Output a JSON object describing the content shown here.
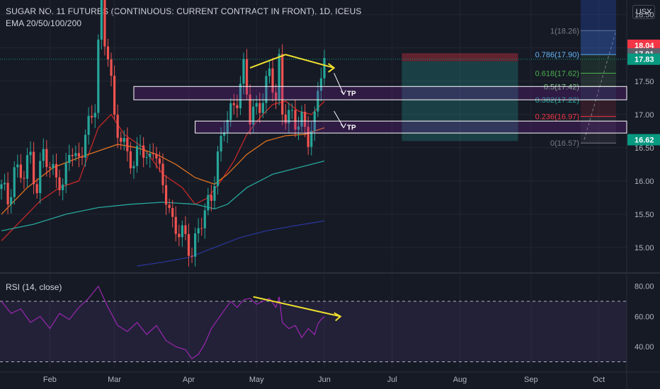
{
  "header": {
    "title": "SUGAR NO. 11 FUTURES (CONTINUOUS: CURRENT CONTRACT IN FRONT), 1D, ICEUS",
    "indicator": "EMA 20/50/100/200",
    "unit": "USX"
  },
  "rsi_label": "RSI (14, close)",
  "colors": {
    "background": "#161a25",
    "up": "#26a69a",
    "down": "#ef5350",
    "ema20": "#c62828",
    "ema50": "#e1731f",
    "ema100": "#26a69a",
    "ema200": "#283593",
    "rsi": "#9c27b0",
    "arrow": "#f0e130",
    "price_current": "#089981",
    "stop": "#f23645"
  },
  "chart_data": [
    {
      "type": "candlestick",
      "title": "SUGAR NO. 11 FUTURES (CONTINUOUS: CURRENT CONTRACT IN FRONT), 1D, ICEUS",
      "ylim": [
        14.68,
        18.72
      ],
      "yticks": [
        15.0,
        15.5,
        16.0,
        16.5,
        17.0,
        17.5,
        18.0,
        18.5
      ],
      "xlim": [
        0,
        200
      ],
      "xticks": [
        {
          "label": "Feb",
          "x": 15
        },
        {
          "label": "Mar",
          "x": 35
        },
        {
          "label": "Apr",
          "x": 58
        },
        {
          "label": "May",
          "x": 79
        },
        {
          "label": "Jun",
          "x": 100
        },
        {
          "label": "Jul",
          "x": 121
        },
        {
          "label": "Aug",
          "x": 142
        },
        {
          "label": "Sep",
          "x": 164
        },
        {
          "label": "Oct",
          "x": 185
        }
      ],
      "ohlc_anchors": [
        [
          0,
          15.88
        ],
        [
          2,
          15.7
        ],
        [
          4,
          16.2
        ],
        [
          7,
          16.05
        ],
        [
          9,
          16.4
        ],
        [
          11,
          15.9
        ],
        [
          13,
          16.45
        ],
        [
          15,
          16.1
        ],
        [
          17,
          16.2
        ],
        [
          19,
          15.85
        ],
        [
          21,
          16.45
        ],
        [
          23,
          16.3
        ],
        [
          25,
          16.55
        ],
        [
          27,
          16.8
        ],
        [
          29,
          17.1
        ],
        [
          30,
          18.05
        ],
        [
          31,
          18.7
        ],
        [
          32,
          18.2
        ],
        [
          33,
          17.9
        ],
        [
          35,
          16.9
        ],
        [
          37,
          16.6
        ],
        [
          39,
          16.55
        ],
        [
          41,
          16.1
        ],
        [
          43,
          16.6
        ],
        [
          45,
          16.3
        ],
        [
          47,
          16.55
        ],
        [
          49,
          16.05
        ],
        [
          51,
          15.8
        ],
        [
          53,
          15.4
        ],
        [
          55,
          15.2
        ],
        [
          57,
          15.1
        ],
        [
          59,
          14.96
        ],
        [
          61,
          15.3
        ],
        [
          63,
          15.45
        ],
        [
          65,
          15.8
        ],
        [
          67,
          16.4
        ],
        [
          69,
          16.8
        ],
        [
          71,
          17.0
        ],
        [
          73,
          17.3
        ],
        [
          75,
          17.7
        ],
        [
          77,
          16.9
        ],
        [
          79,
          17.1
        ],
        [
          81,
          17.3
        ],
        [
          83,
          17.6
        ],
        [
          85,
          17.2
        ],
        [
          86,
          17.8
        ],
        [
          87,
          17.1
        ],
        [
          89,
          17.0
        ],
        [
          91,
          16.8
        ],
        [
          93,
          16.95
        ],
        [
          95,
          16.7
        ],
        [
          97,
          16.85
        ],
        [
          98,
          17.3
        ],
        [
          99,
          17.65
        ],
        [
          100,
          17.83
        ]
      ],
      "ema": [
        {
          "name": "EMA 20",
          "points": [
            [
              0,
              15.1
            ],
            [
              6,
              15.4
            ],
            [
              12,
              15.7
            ],
            [
              18,
              15.9
            ],
            [
              24,
              16.0
            ],
            [
              30,
              16.8
            ],
            [
              34,
              17.0
            ],
            [
              38,
              16.7
            ],
            [
              44,
              16.5
            ],
            [
              50,
              16.1
            ],
            [
              56,
              15.9
            ],
            [
              60,
              15.65
            ],
            [
              64,
              15.75
            ],
            [
              68,
              16.0
            ],
            [
              72,
              16.3
            ],
            [
              76,
              16.7
            ],
            [
              80,
              16.95
            ],
            [
              84,
              17.15
            ],
            [
              88,
              17.2
            ],
            [
              92,
              17.05
            ],
            [
              96,
              17.0
            ],
            [
              100,
              17.2
            ]
          ]
        },
        {
          "name": "EMA 50",
          "points": [
            [
              0,
              15.5
            ],
            [
              8,
              15.9
            ],
            [
              16,
              16.2
            ],
            [
              24,
              16.35
            ],
            [
              30,
              16.45
            ],
            [
              36,
              16.55
            ],
            [
              42,
              16.5
            ],
            [
              48,
              16.4
            ],
            [
              54,
              16.25
            ],
            [
              60,
              16.05
            ],
            [
              66,
              15.95
            ],
            [
              70,
              16.1
            ],
            [
              76,
              16.4
            ],
            [
              82,
              16.6
            ],
            [
              88,
              16.68
            ],
            [
              94,
              16.7
            ],
            [
              100,
              16.8
            ]
          ]
        },
        {
          "name": "EMA 100",
          "points": [
            [
              0,
              15.25
            ],
            [
              10,
              15.35
            ],
            [
              20,
              15.5
            ],
            [
              30,
              15.6
            ],
            [
              40,
              15.65
            ],
            [
              50,
              15.68
            ],
            [
              60,
              15.65
            ],
            [
              66,
              15.58
            ],
            [
              70,
              15.65
            ],
            [
              76,
              15.9
            ],
            [
              84,
              16.1
            ],
            [
              92,
              16.2
            ],
            [
              100,
              16.3
            ]
          ]
        },
        {
          "name": "EMA 200",
          "points": [
            [
              42,
              14.72
            ],
            [
              50,
              14.78
            ],
            [
              58,
              14.85
            ],
            [
              66,
              15.0
            ],
            [
              74,
              15.15
            ],
            [
              82,
              15.25
            ],
            [
              90,
              15.32
            ],
            [
              100,
              15.4
            ]
          ]
        }
      ],
      "rsi": {
        "label": "RSI (14, close)",
        "ylim": [
          26,
          85
        ],
        "yticks": [
          40,
          60,
          80
        ],
        "bands": [
          30,
          70
        ],
        "points": [
          [
            0,
            70
          ],
          [
            3,
            62
          ],
          [
            6,
            65
          ],
          [
            9,
            56
          ],
          [
            12,
            60
          ],
          [
            15,
            52
          ],
          [
            18,
            62
          ],
          [
            21,
            58
          ],
          [
            24,
            66
          ],
          [
            27,
            72
          ],
          [
            30,
            80
          ],
          [
            33,
            66
          ],
          [
            36,
            54
          ],
          [
            39,
            50
          ],
          [
            42,
            56
          ],
          [
            45,
            48
          ],
          [
            48,
            54
          ],
          [
            51,
            44
          ],
          [
            54,
            40
          ],
          [
            57,
            38
          ],
          [
            59,
            32
          ],
          [
            61,
            35
          ],
          [
            63,
            42
          ],
          [
            65,
            52
          ],
          [
            67,
            58
          ],
          [
            69,
            64
          ],
          [
            71,
            70
          ],
          [
            73,
            66
          ],
          [
            75,
            71
          ],
          [
            77,
            72
          ],
          [
            79,
            68
          ],
          [
            81,
            70
          ],
          [
            83,
            72
          ],
          [
            85,
            66
          ],
          [
            86,
            73
          ],
          [
            87,
            56
          ],
          [
            89,
            52
          ],
          [
            91,
            54
          ],
          [
            93,
            46
          ],
          [
            95,
            52
          ],
          [
            97,
            48
          ],
          [
            98,
            55
          ],
          [
            99,
            58
          ],
          [
            100,
            60
          ]
        ]
      },
      "fibonacci": [
        {
          "label": "1(18.26)",
          "value": 18.26,
          "color": "#787b86"
        },
        {
          "label": "0.786(17.90)",
          "value": 17.9,
          "color": "#64b5f6"
        },
        {
          "label": "0.618(17.62)",
          "value": 17.62,
          "color": "#4caf50"
        },
        {
          "label": "0.5(17.42)",
          "value": 17.42,
          "color": "#81c784"
        },
        {
          "label": "0.382(17.22)",
          "value": 17.22,
          "color": "#26a69a"
        },
        {
          "label": "0.236(16.97)",
          "value": 16.97,
          "color": "#f23645"
        },
        {
          "label": "0(16.57)",
          "value": 16.57,
          "color": "#787b86"
        }
      ],
      "tp_zones": [
        {
          "label": "TP",
          "top": 17.42,
          "bottom": 17.22,
          "x_start": 41
        },
        {
          "label": "TP",
          "top": 16.9,
          "bottom": 16.72,
          "x_start": 60
        }
      ],
      "position": {
        "entry": 17.8,
        "stop": 17.92,
        "target": 16.6,
        "x_start": 124,
        "x_end": 160
      },
      "price_labels": [
        {
          "value": "18.04",
          "price": 18.04,
          "color": "#f23645"
        },
        {
          "value": "17.91",
          "price": 17.91,
          "color": "#5d606b"
        },
        {
          "value": "17.83",
          "price": 17.83,
          "color": "#089981"
        },
        {
          "value": "16.62",
          "price": 16.62,
          "color": "#089981"
        }
      ],
      "annotations": {
        "yellow_price": [
          [
            77,
            17.7
          ],
          [
            88,
            17.9
          ],
          [
            103,
            17.7
          ]
        ],
        "yellow_rsi": [
          [
            78,
            73
          ],
          [
            105,
            60
          ]
        ],
        "white_arrows": [
          [
            [
              103,
              17.62
            ],
            [
              106,
              17.3
            ]
          ],
          [
            [
              103,
              17.05
            ],
            [
              106,
              16.8
            ]
          ]
        ]
      }
    }
  ]
}
